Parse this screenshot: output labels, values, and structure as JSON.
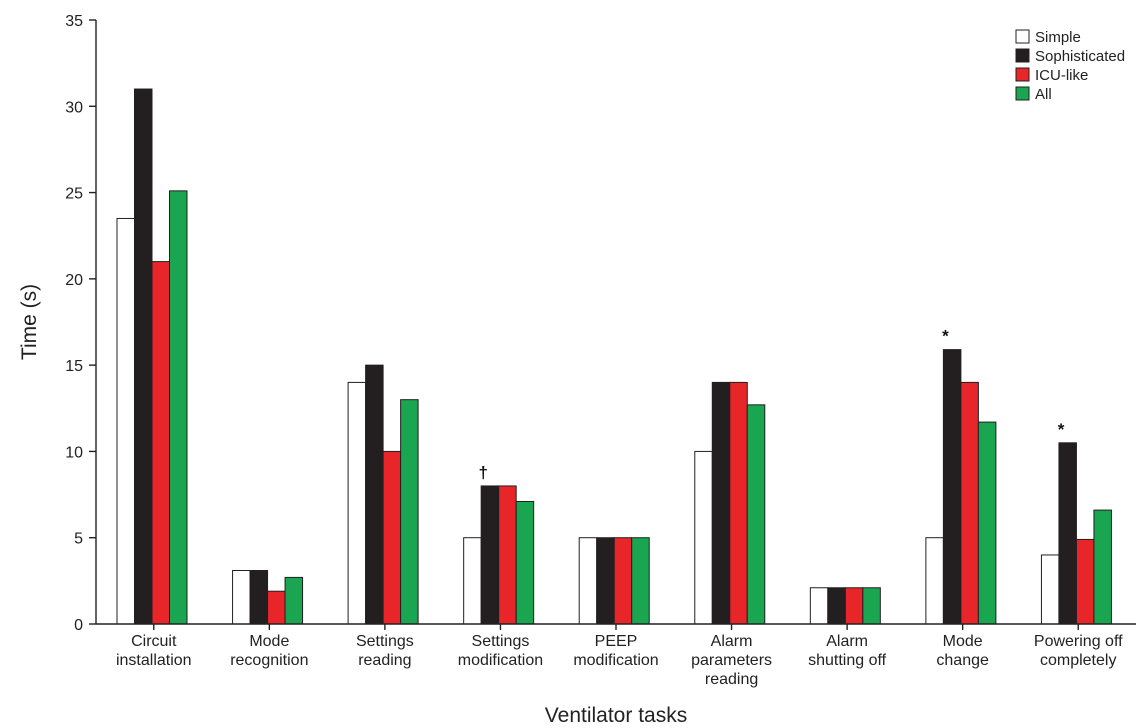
{
  "chart_data": {
    "type": "bar",
    "title": "",
    "xlabel": "Ventilator tasks",
    "ylabel": "Time (s)",
    "ylim": [
      0,
      35
    ],
    "yticks": [
      0,
      5,
      10,
      15,
      20,
      25,
      30,
      35
    ],
    "grid": false,
    "legend_position": "top-right",
    "categories": [
      [
        "Circuit",
        "installation"
      ],
      [
        "Mode",
        "recognition"
      ],
      [
        "Settings",
        "reading"
      ],
      [
        "Settings",
        "modification"
      ],
      [
        "PEEP",
        "modification"
      ],
      [
        "Alarm",
        "parameters",
        "reading"
      ],
      [
        "Alarm",
        "shutting off"
      ],
      [
        "Mode",
        "change"
      ],
      [
        "Powering off",
        "completely"
      ]
    ],
    "series": [
      {
        "name": "Simple",
        "color": "#ffffff",
        "values": [
          23.5,
          3.1,
          14.0,
          5.0,
          5.0,
          10.0,
          2.1,
          5.0,
          4.0
        ]
      },
      {
        "name": "Sophisticated",
        "color": "#231f20",
        "values": [
          31.0,
          3.1,
          15.0,
          8.0,
          5.0,
          14.0,
          2.1,
          15.9,
          10.5
        ]
      },
      {
        "name": "ICU-like",
        "color": "#e8262a",
        "values": [
          21.0,
          1.9,
          10.0,
          8.0,
          5.0,
          14.0,
          2.1,
          14.0,
          4.9
        ]
      },
      {
        "name": "All",
        "color": "#1aa551",
        "values": [
          25.1,
          2.7,
          13.0,
          7.1,
          5.0,
          12.7,
          2.1,
          11.7,
          6.6
        ]
      }
    ],
    "annotations": [
      {
        "text": "†",
        "category_index": 3,
        "series_index": 1
      },
      {
        "text": "*",
        "category_index": 7,
        "series_index": 1
      },
      {
        "text": "*",
        "category_index": 8,
        "series_index": 1
      }
    ]
  }
}
